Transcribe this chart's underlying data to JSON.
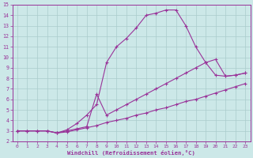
{
  "title": "",
  "xlabel": "Windchill (Refroidissement éolien,°C)",
  "ylabel": "",
  "xlim": [
    -0.5,
    23.5
  ],
  "ylim": [
    2,
    15
  ],
  "xticks": [
    0,
    1,
    2,
    3,
    4,
    5,
    6,
    7,
    8,
    9,
    10,
    11,
    12,
    13,
    14,
    15,
    16,
    17,
    18,
    19,
    20,
    21,
    22,
    23
  ],
  "yticks": [
    2,
    3,
    4,
    5,
    6,
    7,
    8,
    9,
    10,
    11,
    12,
    13,
    14,
    15
  ],
  "bg_color": "#cce8e8",
  "line_color": "#993399",
  "grid_color": "#aacccc",
  "series1_x": [
    0,
    1,
    2,
    3,
    4,
    5,
    6,
    7,
    8,
    9,
    10,
    11,
    12,
    13,
    14,
    15,
    16,
    17,
    18,
    19,
    20,
    21,
    22,
    23
  ],
  "series1_y": [
    3.0,
    3.0,
    3.0,
    3.0,
    2.8,
    2.9,
    3.1,
    3.3,
    3.5,
    3.8,
    4.0,
    4.2,
    4.5,
    4.7,
    5.0,
    5.2,
    5.5,
    5.8,
    6.0,
    6.3,
    6.6,
    6.9,
    7.2,
    7.5
  ],
  "series2_x": [
    0,
    1,
    2,
    3,
    4,
    5,
    6,
    7,
    8,
    9,
    10,
    11,
    12,
    13,
    14,
    15,
    16,
    17,
    18,
    19,
    20,
    21,
    22,
    23
  ],
  "series2_y": [
    3.0,
    3.0,
    3.0,
    3.0,
    2.8,
    3.1,
    3.7,
    4.5,
    5.5,
    9.5,
    11.0,
    11.8,
    12.8,
    14.0,
    14.2,
    14.5,
    14.5,
    13.0,
    11.0,
    9.5,
    8.3,
    8.2,
    8.3,
    8.5
  ],
  "series3_x": [
    0,
    1,
    2,
    3,
    4,
    5,
    6,
    7,
    8,
    9,
    10,
    11,
    12,
    13,
    14,
    15,
    16,
    17,
    18,
    19,
    20,
    21,
    22,
    23
  ],
  "series3_y": [
    3.0,
    3.0,
    3.0,
    3.0,
    2.8,
    3.0,
    3.2,
    3.4,
    6.5,
    4.5,
    5.0,
    5.5,
    6.0,
    6.5,
    7.0,
    7.5,
    8.0,
    8.5,
    9.0,
    9.5,
    9.8,
    8.2,
    8.3,
    8.5
  ]
}
